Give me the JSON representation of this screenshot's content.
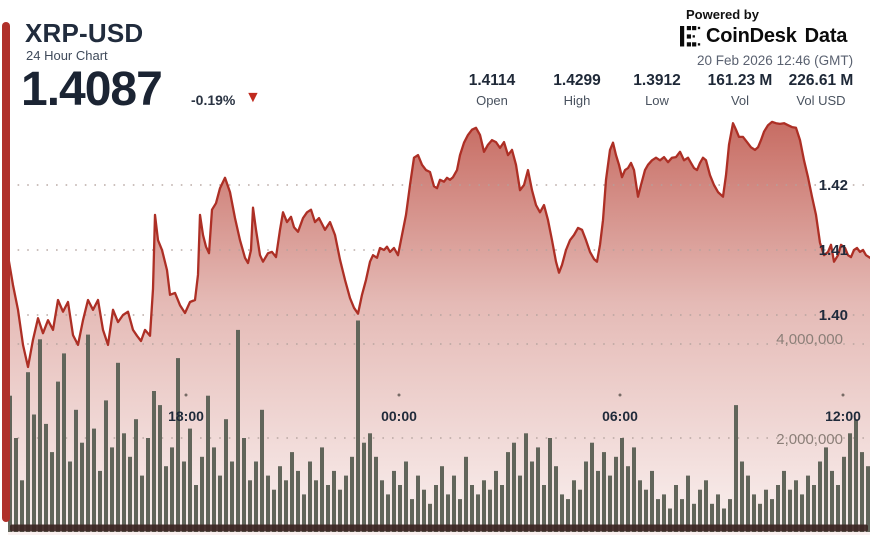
{
  "header": {
    "symbol": "XRP-USD",
    "subtitle": "24 Hour Chart",
    "price": "1.4087",
    "change": "-0.19%",
    "down_triangle": "▼",
    "powered_by": "Powered by",
    "brand": "CoinDesk",
    "brand_suffix": "Data",
    "timestamp": "20 Feb 2026 12:46 (GMT)"
  },
  "stats": [
    {
      "value": "1.4114",
      "label": "Open"
    },
    {
      "value": "1.4299",
      "label": "High"
    },
    {
      "value": "1.3912",
      "label": "Low"
    },
    {
      "value": "161.23 M",
      "label": "Vol"
    },
    {
      "value": "226.61 M",
      "label": "Vol USD"
    }
  ],
  "colors": {
    "accent_red": "#b0302a",
    "line_red": "#ad2f25",
    "fill_red": "#b23528",
    "volume_bar": "#61655a",
    "bottom_bar": "#3c2723",
    "navy_text": "#1e2837",
    "gray_text": "#5a6170",
    "grid_dot": "#b3a29d",
    "triangle_red": "#c02a1e"
  },
  "chart_data": {
    "type": "area",
    "title": "XRP-USD 24 Hour Chart",
    "grid": "dotted horizontal",
    "legend": "none",
    "price_axis": {
      "side": "right",
      "ticks": [
        "1.42",
        "1.41",
        "1.40"
      ],
      "tick_values": [
        1.42,
        1.41,
        1.4
      ],
      "range": [
        1.389,
        1.431
      ]
    },
    "volume_axis": {
      "side": "right",
      "ticks": [
        "4,000,000",
        "2,000,000"
      ],
      "tick_values": [
        4000000,
        2000000
      ],
      "range": [
        0,
        4800000
      ]
    },
    "x_axis": {
      "ticks": [
        "18:00",
        "00:00",
        "06:00",
        "12:00"
      ],
      "tick_x": [
        186,
        399,
        620,
        843
      ],
      "dot_y": 395
    },
    "series": [
      {
        "name": "XRP-USD price",
        "type": "area",
        "unit": "USD",
        "points": [
          [
            8,
            1.4091
          ],
          [
            13,
            1.4046
          ],
          [
            18,
            1.4008
          ],
          [
            23,
            1.3954
          ],
          [
            28,
            1.392
          ],
          [
            33,
            1.3962
          ],
          [
            38,
            1.3995
          ],
          [
            43,
            1.3972
          ],
          [
            48,
            1.3992
          ],
          [
            53,
            1.3977
          ],
          [
            58,
            1.4023
          ],
          [
            63,
            1.4005
          ],
          [
            68,
            1.402
          ],
          [
            73,
            1.3969
          ],
          [
            78,
            1.3954
          ],
          [
            83,
            1.3992
          ],
          [
            88,
            1.4023
          ],
          [
            93,
            1.4008
          ],
          [
            98,
            1.4023
          ],
          [
            103,
            1.3977
          ],
          [
            108,
            1.3954
          ],
          [
            113,
            1.4008
          ],
          [
            118,
            1.3989
          ],
          [
            123,
            1.4
          ],
          [
            128,
            1.4005
          ],
          [
            133,
            1.3977
          ],
          [
            137,
            1.3968
          ],
          [
            141,
            1.396
          ],
          [
            145,
            1.3977
          ],
          [
            150,
            1.3968
          ],
          [
            153,
            1.404
          ],
          [
            155,
            1.4154
          ],
          [
            158,
            1.4115
          ],
          [
            162,
            1.41
          ],
          [
            167,
            1.4069
          ],
          [
            170,
            1.4031
          ],
          [
            175,
            1.4034
          ],
          [
            180,
            1.4015
          ],
          [
            185,
            1.4003
          ],
          [
            190,
            1.402
          ],
          [
            195,
            1.4023
          ],
          [
            198,
            1.4062
          ],
          [
            200,
            1.4154
          ],
          [
            203,
            1.4123
          ],
          [
            206,
            1.4105
          ],
          [
            209,
            1.4095
          ],
          [
            212,
            1.4162
          ],
          [
            216,
            1.4172
          ],
          [
            220,
            1.4195
          ],
          [
            225,
            1.4211
          ],
          [
            230,
            1.4189
          ],
          [
            235,
            1.4149
          ],
          [
            240,
            1.4115
          ],
          [
            245,
            1.4088
          ],
          [
            248,
            1.408
          ],
          [
            251,
            1.41
          ],
          [
            253,
            1.4165
          ],
          [
            256,
            1.4131
          ],
          [
            260,
            1.4092
          ],
          [
            263,
            1.4082
          ],
          [
            268,
            1.4095
          ],
          [
            272,
            1.4097
          ],
          [
            276,
            1.4089
          ],
          [
            280,
            1.4131
          ],
          [
            283,
            1.4158
          ],
          [
            287,
            1.4143
          ],
          [
            291,
            1.4151
          ],
          [
            294,
            1.4135
          ],
          [
            298,
            1.4128
          ],
          [
            303,
            1.4149
          ],
          [
            307,
            1.4158
          ],
          [
            311,
            1.4162
          ],
          [
            315,
            1.4143
          ],
          [
            319,
            1.4149
          ],
          [
            325,
            1.4131
          ],
          [
            330,
            1.4143
          ],
          [
            335,
            1.4123
          ],
          [
            340,
            1.4085
          ],
          [
            345,
            1.4054
          ],
          [
            350,
            1.4026
          ],
          [
            354,
            1.4011
          ],
          [
            358,
            1.4002
          ],
          [
            362,
            1.4031
          ],
          [
            366,
            1.4054
          ],
          [
            370,
            1.4082
          ],
          [
            373,
            1.4092
          ],
          [
            377,
            1.4088
          ],
          [
            380,
            1.4103
          ],
          [
            384,
            1.41
          ],
          [
            387,
            1.4105
          ],
          [
            390,
            1.4097
          ],
          [
            394,
            1.4103
          ],
          [
            398,
            1.4092
          ],
          [
            402,
            1.4123
          ],
          [
            406,
            1.4154
          ],
          [
            410,
            1.42
          ],
          [
            414,
            1.4242
          ],
          [
            418,
            1.4246
          ],
          [
            422,
            1.4231
          ],
          [
            426,
            1.4223
          ],
          [
            430,
            1.422
          ],
          [
            434,
            1.4198
          ],
          [
            437,
            1.4195
          ],
          [
            440,
            1.4208
          ],
          [
            444,
            1.4205
          ],
          [
            447,
            1.4211
          ],
          [
            450,
            1.4208
          ],
          [
            453,
            1.4212
          ],
          [
            457,
            1.4223
          ],
          [
            460,
            1.4246
          ],
          [
            464,
            1.4265
          ],
          [
            468,
            1.4277
          ],
          [
            472,
            1.4285
          ],
          [
            476,
            1.4288
          ],
          [
            480,
            1.4277
          ],
          [
            484,
            1.4251
          ],
          [
            488,
            1.4262
          ],
          [
            492,
            1.4269
          ],
          [
            496,
            1.4266
          ],
          [
            500,
            1.4257
          ],
          [
            504,
            1.4266
          ],
          [
            508,
            1.4246
          ],
          [
            512,
            1.4254
          ],
          [
            516,
            1.4231
          ],
          [
            520,
            1.4192
          ],
          [
            524,
            1.42
          ],
          [
            528,
            1.4223
          ],
          [
            532,
            1.4192
          ],
          [
            536,
            1.4169
          ],
          [
            540,
            1.4158
          ],
          [
            544,
            1.4169
          ],
          [
            548,
            1.4146
          ],
          [
            552,
            1.4115
          ],
          [
            556,
            1.4082
          ],
          [
            559,
            1.4065
          ],
          [
            562,
            1.4077
          ],
          [
            566,
            1.41
          ],
          [
            570,
            1.4115
          ],
          [
            574,
            1.4123
          ],
          [
            578,
            1.4134
          ],
          [
            582,
            1.4131
          ],
          [
            586,
            1.4115
          ],
          [
            590,
            1.4097
          ],
          [
            594,
            1.4086
          ],
          [
            597,
            1.4082
          ],
          [
            600,
            1.4108
          ],
          [
            603,
            1.4146
          ],
          [
            606,
            1.4208
          ],
          [
            610,
            1.4254
          ],
          [
            613,
            1.4265
          ],
          [
            616,
            1.4246
          ],
          [
            619,
            1.4231
          ],
          [
            622,
            1.4212
          ],
          [
            625,
            1.4223
          ],
          [
            628,
            1.4226
          ],
          [
            631,
            1.4234
          ],
          [
            634,
            1.4223
          ],
          [
            638,
            1.4182
          ],
          [
            641,
            1.42
          ],
          [
            645,
            1.4223
          ],
          [
            648,
            1.4231
          ],
          [
            652,
            1.4238
          ],
          [
            656,
            1.4242
          ],
          [
            660,
            1.4238
          ],
          [
            664,
            1.4243
          ],
          [
            668,
            1.4235
          ],
          [
            672,
            1.4242
          ],
          [
            676,
            1.4243
          ],
          [
            680,
            1.4251
          ],
          [
            684,
            1.4238
          ],
          [
            688,
            1.4242
          ],
          [
            691,
            1.4234
          ],
          [
            694,
            1.4226
          ],
          [
            697,
            1.4223
          ],
          [
            700,
            1.4234
          ],
          [
            703,
            1.4242
          ],
          [
            706,
            1.4238
          ],
          [
            710,
            1.4215
          ],
          [
            714,
            1.42
          ],
          [
            718,
            1.4189
          ],
          [
            723,
            1.4182
          ],
          [
            726,
            1.4215
          ],
          [
            729,
            1.4262
          ],
          [
            733,
            1.4295
          ],
          [
            736,
            1.4285
          ],
          [
            739,
            1.4274
          ],
          [
            743,
            1.4274
          ],
          [
            747,
            1.4266
          ],
          [
            751,
            1.4258
          ],
          [
            755,
            1.4254
          ],
          [
            758,
            1.4258
          ],
          [
            761,
            1.4269
          ],
          [
            764,
            1.4282
          ],
          [
            768,
            1.4292
          ],
          [
            772,
            1.4297
          ],
          [
            776,
            1.4295
          ],
          [
            780,
            1.4294
          ],
          [
            784,
            1.4295
          ],
          [
            788,
            1.4292
          ],
          [
            792,
            1.4289
          ],
          [
            796,
            1.4288
          ],
          [
            800,
            1.4269
          ],
          [
            804,
            1.4238
          ],
          [
            808,
            1.4212
          ],
          [
            812,
            1.4182
          ],
          [
            816,
            1.4154
          ],
          [
            820,
            1.4111
          ],
          [
            824,
            1.4092
          ],
          [
            828,
            1.4097
          ],
          [
            831,
            1.4108
          ],
          [
            834,
            1.4082
          ],
          [
            838,
            1.4092
          ],
          [
            841,
            1.4108
          ],
          [
            845,
            1.4103
          ],
          [
            848,
            1.4092
          ],
          [
            851,
            1.4089
          ],
          [
            854,
            1.41
          ],
          [
            857,
            1.4103
          ],
          [
            860,
            1.4097
          ],
          [
            863,
            1.41
          ],
          [
            866,
            1.4092
          ],
          [
            870,
            1.4088
          ]
        ]
      },
      {
        "name": "Volume",
        "type": "bar",
        "unit": "millions",
        "values": [
          2.9,
          2.0,
          1.1,
          3.4,
          2.5,
          4.1,
          2.3,
          1.7,
          3.2,
          3.8,
          1.5,
          2.6,
          1.9,
          4.2,
          2.2,
          1.3,
          2.8,
          1.8,
          3.6,
          2.1,
          1.6,
          2.4,
          1.2,
          2.0,
          3.0,
          2.7,
          1.4,
          1.8,
          3.7,
          1.5,
          2.2,
          1.0,
          1.6,
          2.9,
          1.8,
          1.2,
          2.4,
          1.5,
          4.3,
          2.0,
          1.1,
          1.5,
          2.6,
          1.2,
          0.9,
          1.4,
          1.1,
          1.7,
          1.3,
          0.8,
          1.5,
          1.1,
          1.8,
          1.0,
          1.3,
          0.9,
          1.2,
          1.6,
          4.5,
          1.9,
          2.1,
          1.6,
          1.1,
          0.8,
          1.3,
          1.0,
          1.5,
          0.7,
          1.2,
          0.9,
          0.6,
          1.0,
          1.4,
          0.8,
          1.2,
          0.7,
          1.6,
          1.0,
          0.8,
          1.1,
          0.9,
          1.3,
          1.0,
          1.7,
          1.9,
          1.2,
          2.1,
          1.5,
          1.8,
          1.0,
          2.0,
          1.4,
          0.8,
          0.7,
          1.1,
          0.9,
          1.5,
          1.9,
          1.3,
          1.7,
          1.2,
          1.6,
          2.0,
          1.4,
          1.8,
          1.1,
          0.9,
          1.3,
          0.7,
          0.8,
          0.5,
          1.0,
          0.7,
          1.2,
          0.6,
          0.9,
          1.1,
          0.6,
          0.8,
          0.5,
          0.7,
          2.7,
          1.5,
          1.2,
          0.8,
          0.6,
          0.9,
          0.7,
          1.0,
          1.3,
          0.9,
          1.1,
          0.8,
          1.2,
          1.0,
          1.5,
          1.8,
          1.3,
          1.0,
          1.6,
          2.1,
          2.4,
          1.7,
          1.4
        ]
      }
    ]
  }
}
